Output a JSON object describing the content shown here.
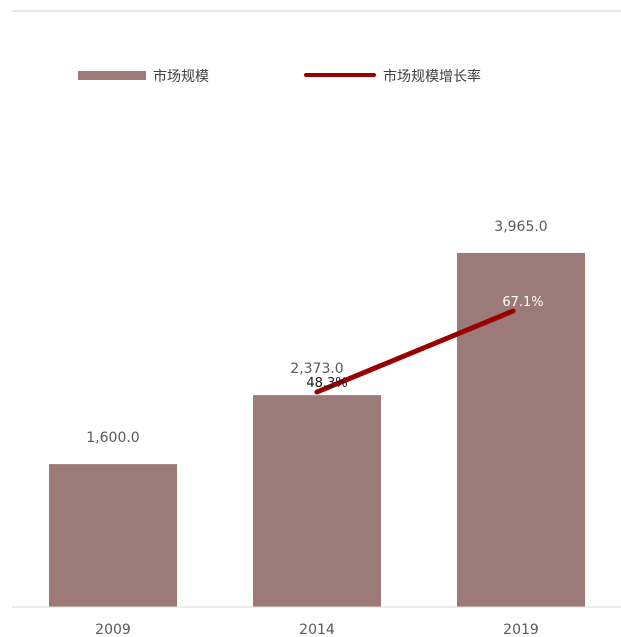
{
  "chart_data": {
    "type": "bar",
    "categories": [
      "2009",
      "2014",
      "2019"
    ],
    "series": [
      {
        "name": "市场规模",
        "type": "bar",
        "values": [
          1600.0,
          2373.0,
          3965.0
        ],
        "labels": [
          "1,600.0",
          "2,373.0",
          "3,965.0"
        ],
        "color": "#9c7a77"
      },
      {
        "name": "市场规模增长率",
        "type": "line",
        "values": [
          null,
          48.3,
          67.1
        ],
        "labels": [
          "",
          "48.3%",
          "67.1%"
        ],
        "color": "#990000"
      }
    ],
    "legend_position": "top",
    "grid": false
  }
}
